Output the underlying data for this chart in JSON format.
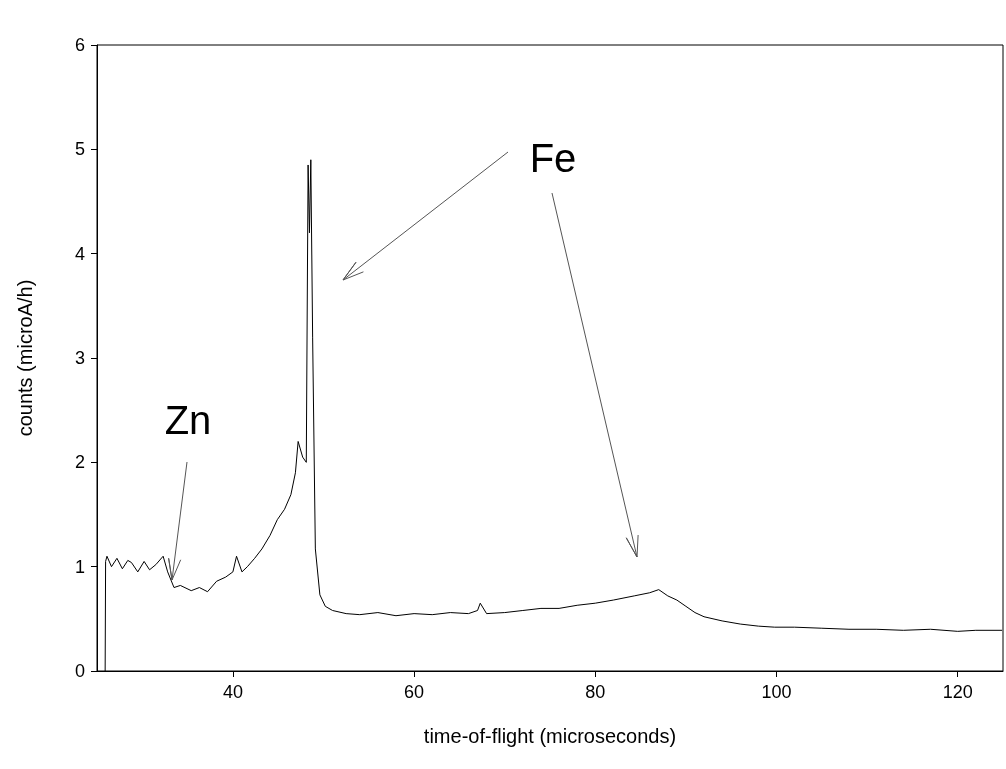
{
  "chart_data": {
    "type": "line",
    "xlabel": "time-of-flight (microseconds)",
    "ylabel": "counts (microA/h)",
    "xlim": [
      25,
      125
    ],
    "ylim": [
      0,
      6
    ],
    "xticks": [
      40,
      60,
      80,
      100,
      120
    ],
    "yticks": [
      0,
      1,
      2,
      3,
      4,
      5,
      6
    ],
    "grid": false,
    "marker": "none",
    "line_style": "solid",
    "series": [
      {
        "color": "#000000",
        "x": [
          25.9,
          25.95,
          26.1,
          26.6,
          27.2,
          27.8,
          28.4,
          28.8,
          29.5,
          30.2,
          30.8,
          31.5,
          32.3,
          32.8,
          33.5,
          34.2,
          35.4,
          36.3,
          37.2,
          38.2,
          39.2,
          40.0,
          40.4,
          41.0,
          41.6,
          42.4,
          43.2,
          44.1,
          44.9,
          45.7,
          46.4,
          46.9,
          47.2,
          47.7,
          48.1,
          48.3,
          48.45,
          48.6,
          48.8,
          49.1,
          49.6,
          50.2,
          51.0,
          52.5,
          54.0,
          56.0,
          58.0,
          60.0,
          62.0,
          64.0,
          66.0,
          67.0,
          67.3,
          68.0,
          70.0,
          72.0,
          74.0,
          76.0,
          78.0,
          80.0,
          82.0,
          84.3,
          86.0,
          87.0,
          88.0,
          89.0,
          90.0,
          91.0,
          92.0,
          94.0,
          96.0,
          98.0,
          99.8,
          102.0,
          105.0,
          108.0,
          111.0,
          114.0,
          117.0,
          120.0,
          122.0,
          124.9
        ],
        "values": [
          0,
          1.05,
          1.1,
          1.0,
          1.08,
          0.98,
          1.06,
          1.04,
          0.95,
          1.05,
          0.97,
          1.02,
          1.1,
          0.95,
          0.8,
          0.82,
          0.77,
          0.8,
          0.76,
          0.86,
          0.9,
          0.95,
          1.1,
          0.95,
          1.0,
          1.08,
          1.17,
          1.3,
          1.45,
          1.55,
          1.69,
          1.9,
          2.2,
          2.05,
          2.0,
          4.85,
          4.2,
          4.9,
          3.2,
          1.17,
          0.73,
          0.62,
          0.58,
          0.55,
          0.54,
          0.56,
          0.53,
          0.55,
          0.54,
          0.56,
          0.55,
          0.58,
          0.65,
          0.55,
          0.56,
          0.58,
          0.6,
          0.6,
          0.63,
          0.65,
          0.68,
          0.72,
          0.75,
          0.78,
          0.72,
          0.68,
          0.62,
          0.56,
          0.52,
          0.48,
          0.45,
          0.43,
          0.42,
          0.42,
          0.41,
          0.4,
          0.4,
          0.39,
          0.4,
          0.38,
          0.39,
          0.39
        ]
      }
    ],
    "annotations": [
      "Zn",
      "Fe"
    ]
  }
}
